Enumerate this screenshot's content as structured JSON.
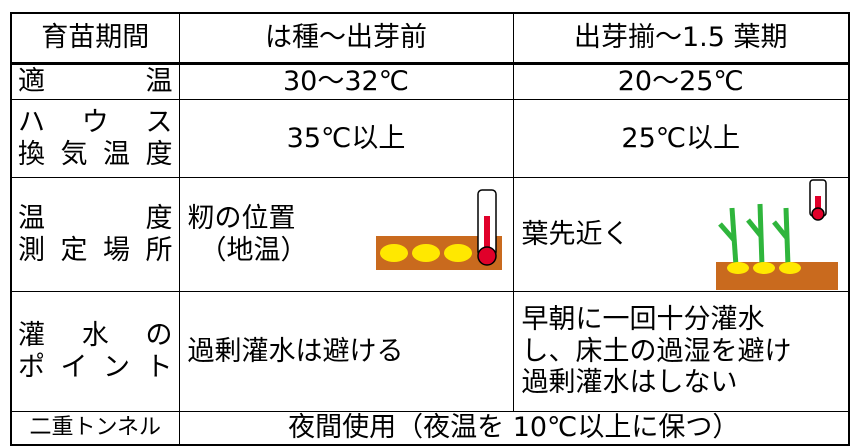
{
  "table": {
    "header": [
      "育苗期間",
      "は種〜出芽前",
      "出芽揃〜1.5 葉期"
    ],
    "rows": [
      [
        [
          "適 温"
        ],
        [
          "30〜32℃"
        ],
        [
          "20〜25℃"
        ]
      ],
      [
        [
          "ハ ウ ス",
          "換気温度"
        ],
        [
          "35℃以上"
        ],
        [
          "25℃以上"
        ]
      ],
      [
        [
          "温 度",
          "測定場所"
        ],
        [
          "籾の位置",
          "（地温）"
        ],
        [
          "葉先近く"
        ]
      ],
      [
        [
          "灌 水 の",
          "ポイント"
        ],
        [
          "過剰灌水は避ける"
        ],
        [
          "早朝に一回十分灌水",
          "し、床土の過湿を避け",
          "過剰灌水はしない"
        ]
      ],
      [
        [
          "二重トンネル"
        ],
        [
          "夜間使用（夜温を 10℃以上に保つ）"
        ]
      ]
    ]
  }
}
